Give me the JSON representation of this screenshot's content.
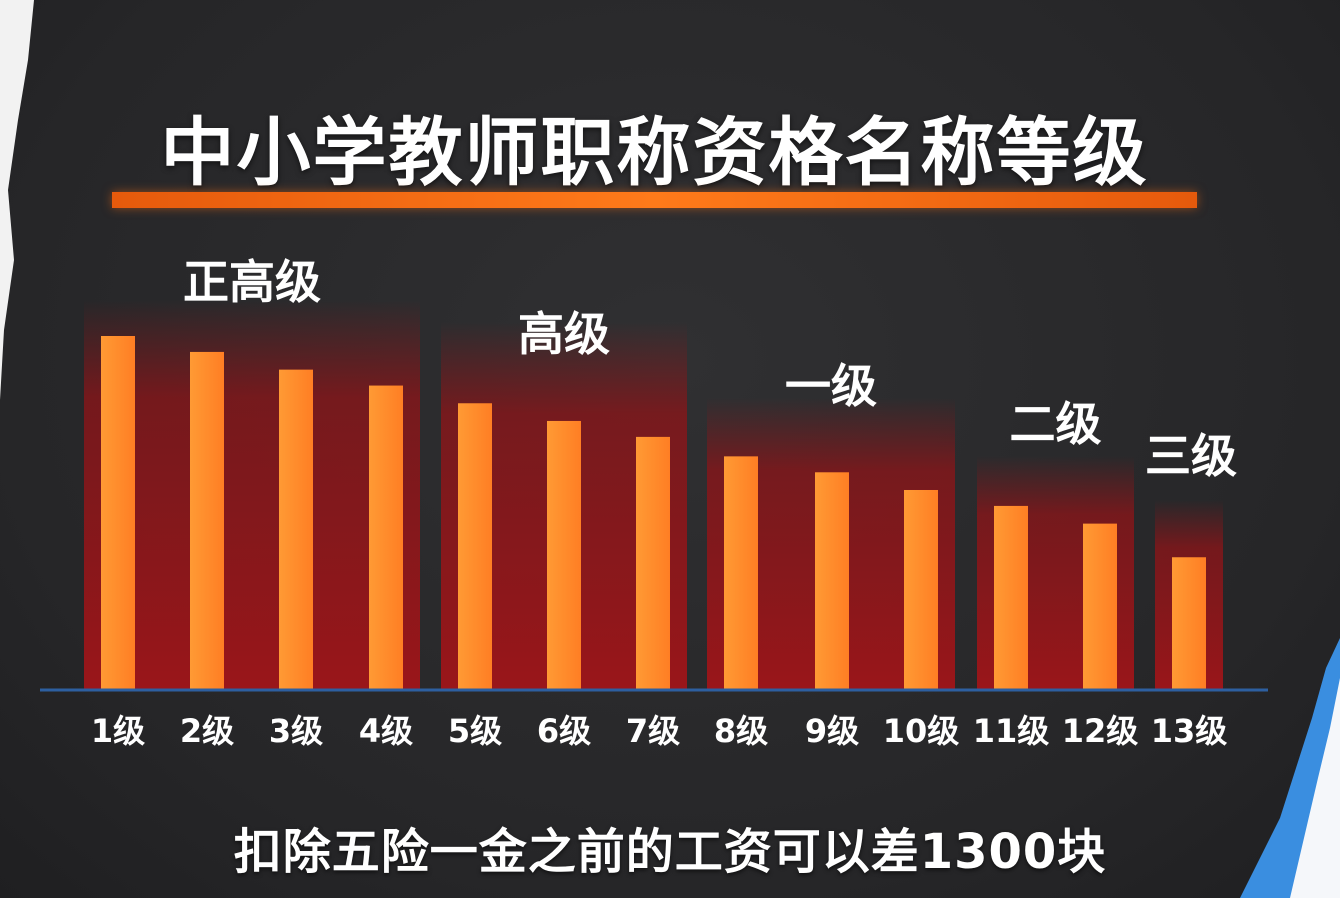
{
  "chart_data": {
    "type": "bar",
    "title": "中小学教师职称资格名称等级",
    "categories": [
      "1级",
      "2级",
      "3级",
      "4级",
      "5级",
      "6级",
      "7级",
      "8级",
      "9级",
      "10级",
      "11级",
      "12级",
      "13级"
    ],
    "values": [
      100,
      95.5,
      90.5,
      86,
      81,
      76,
      71.5,
      66,
      61.5,
      56.5,
      52,
      47,
      37.5
    ],
    "ylim": [
      0,
      100
    ],
    "groups": [
      {
        "label": "正高级",
        "range": [
          0,
          3
        ]
      },
      {
        "label": "高级",
        "range": [
          4,
          6
        ]
      },
      {
        "label": "一级",
        "range": [
          7,
          9
        ]
      },
      {
        "label": "二级",
        "range": [
          10,
          11
        ]
      },
      {
        "label": "三级",
        "range": [
          12,
          12
        ]
      }
    ],
    "footnote": "扣除五险一金之前的工资可以差1300块",
    "bar_color": "#ff8a2a",
    "band_color": "#8e1418",
    "grid": false
  }
}
